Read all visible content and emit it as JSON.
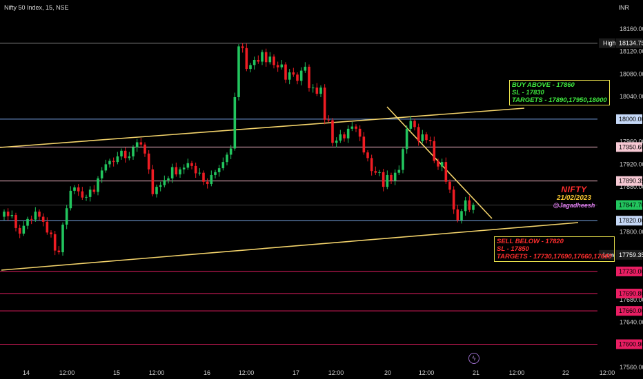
{
  "header": {
    "title": "Nifty 50 Index, 15, NSE",
    "currency": "INR"
  },
  "chart_data": {
    "type": "candlestick",
    "price_ylim": [
      17560,
      18175
    ],
    "x_tick_labels": [
      "14",
      "12:00",
      "15",
      "12:00",
      "16",
      "12:00",
      "17",
      "12:00",
      "20",
      "12:00",
      "21",
      "12:00",
      "22",
      "12:00"
    ],
    "y_tick_labels": [
      "18160.00",
      "18120.00",
      "18080.00",
      "18040.00",
      "17960.00",
      "17920.00",
      "17880.00",
      "17800.00",
      "17680.00",
      "17640.00",
      "17560.00"
    ],
    "horizontal_levels": [
      {
        "label": "High",
        "value": "18134.75",
        "price": 18134.75,
        "color": "#888888",
        "tag_bg": "#1b1b1b",
        "tag_fg": "#ffffff"
      },
      {
        "label": "",
        "value": "18000.00",
        "price": 18000.0,
        "color": "#7aa7e8",
        "tag_bg": "#c5d8f7",
        "tag_fg": "#000000"
      },
      {
        "label": "",
        "value": "17950.60",
        "price": 17950.6,
        "color": "#f4b6c6",
        "tag_bg": "#f7c9d4",
        "tag_fg": "#000000"
      },
      {
        "label": "",
        "value": "17890.35",
        "price": 17890.35,
        "color": "#f4b6c6",
        "tag_bg": "#f7c9d4",
        "tag_fg": "#000000"
      },
      {
        "label": "",
        "value": "17847.70",
        "price": 17847.7,
        "color": "#3d3d3d",
        "tag_bg": "#22c55e",
        "tag_fg": "#000000"
      },
      {
        "label": "",
        "value": "17820.00",
        "price": 17820.0,
        "color": "#7aa7e8",
        "tag_bg": "#c5d8f7",
        "tag_fg": "#000000"
      },
      {
        "label": "Low",
        "value": "17759.35",
        "price": 17759.35,
        "color": "#000000",
        "tag_bg": "#1b1b1b",
        "tag_fg": "#ffffff"
      },
      {
        "label": "",
        "value": "17730.00",
        "price": 17730.0,
        "color": "#e91e63",
        "tag_bg": "#e91e63",
        "tag_fg": "#000000"
      },
      {
        "label": "",
        "value": "17690.80",
        "price": 17690.8,
        "color": "#e91e63",
        "tag_bg": "#e91e63",
        "tag_fg": "#000000"
      },
      {
        "label": "",
        "value": "17660.00",
        "price": 17660.0,
        "color": "#e91e63",
        "tag_bg": "#e91e63",
        "tag_fg": "#000000"
      },
      {
        "label": "",
        "value": "17600.90",
        "price": 17600.9,
        "color": "#e91e63",
        "tag_bg": "#e91e63",
        "tag_fg": "#000000"
      }
    ],
    "trendlines": [
      {
        "color": "#f3d36b",
        "points": [
          [
            "14 09:15",
            17955
          ],
          [
            "21 12:00",
            18015
          ]
        ]
      },
      {
        "color": "#f3d36b",
        "points": [
          [
            "14 09:15",
            17755
          ],
          [
            "22 09:15",
            17818
          ]
        ]
      },
      {
        "color": "#f3d36b",
        "points": [
          [
            "20 10:30",
            18030
          ],
          [
            "21 11:30",
            17822
          ]
        ]
      }
    ],
    "candles": [
      [
        17827,
        17836
      ],
      [
        17836,
        17828
      ],
      [
        17828,
        17830
      ],
      [
        17830,
        17807
      ],
      [
        17807,
        17797
      ],
      [
        17797,
        17811
      ],
      [
        17811,
        17823
      ],
      [
        17823,
        17822
      ],
      [
        17822,
        17836
      ],
      [
        17836,
        17827
      ],
      [
        17827,
        17818
      ],
      [
        17818,
        17799
      ],
      [
        17799,
        17796
      ],
      [
        17796,
        17767
      ],
      [
        17767,
        17764
      ],
      [
        17764,
        17813
      ],
      [
        17813,
        17842
      ],
      [
        17842,
        17873
      ],
      [
        17873,
        17879
      ],
      [
        17879,
        17872
      ],
      [
        17872,
        17861
      ],
      [
        17861,
        17862
      ],
      [
        17862,
        17875
      ],
      [
        17875,
        17871
      ],
      [
        17871,
        17895
      ],
      [
        17895,
        17909
      ],
      [
        17909,
        17920
      ],
      [
        17920,
        17926
      ],
      [
        17926,
        17924
      ],
      [
        17924,
        17934
      ],
      [
        17934,
        17944
      ],
      [
        17944,
        17931
      ],
      [
        17931,
        17934
      ],
      [
        17934,
        17950
      ],
      [
        17950,
        17959
      ],
      [
        17959,
        17955
      ],
      [
        17955,
        17939
      ],
      [
        17939,
        17911
      ],
      [
        17911,
        17867
      ],
      [
        17867,
        17880
      ],
      [
        17880,
        17883
      ],
      [
        17883,
        17892
      ],
      [
        17892,
        17895
      ],
      [
        17895,
        17915
      ],
      [
        17915,
        17902
      ],
      [
        17902,
        17911
      ],
      [
        17911,
        17914
      ],
      [
        17914,
        17922
      ],
      [
        17922,
        17917
      ],
      [
        17917,
        17904
      ],
      [
        17904,
        17905
      ],
      [
        17905,
        17889
      ],
      [
        17889,
        17885
      ],
      [
        17885,
        17901
      ],
      [
        17901,
        17906
      ],
      [
        17906,
        17913
      ],
      [
        17913,
        17924
      ],
      [
        17924,
        17937
      ],
      [
        17937,
        17948
      ],
      [
        17948,
        18039
      ],
      [
        18039,
        18129
      ],
      [
        18129,
        18126
      ],
      [
        18126,
        18089
      ],
      [
        18089,
        18096
      ],
      [
        18096,
        18105
      ],
      [
        18105,
        18102
      ],
      [
        18102,
        18119
      ],
      [
        18119,
        18101
      ],
      [
        18101,
        18111
      ],
      [
        18111,
        18096
      ],
      [
        18096,
        18092
      ],
      [
        18092,
        18097
      ],
      [
        18097,
        18070
      ],
      [
        18070,
        18083
      ],
      [
        18083,
        18079
      ],
      [
        18079,
        18068
      ],
      [
        18068,
        18086
      ],
      [
        18086,
        18093
      ],
      [
        18093,
        18055
      ],
      [
        18055,
        18056
      ],
      [
        18056,
        18045
      ],
      [
        18045,
        18056
      ],
      [
        18056,
        17999
      ],
      [
        17999,
        17998
      ],
      [
        17998,
        17958
      ],
      [
        17958,
        17962
      ],
      [
        17962,
        17973
      ],
      [
        17973,
        17966
      ],
      [
        17966,
        17983
      ],
      [
        17983,
        17987
      ],
      [
        17987,
        17983
      ],
      [
        17983,
        17969
      ],
      [
        17969,
        17941
      ],
      [
        17941,
        17931
      ],
      [
        17931,
        17908
      ],
      [
        17908,
        17905
      ],
      [
        17905,
        17906
      ],
      [
        17906,
        17880
      ],
      [
        17880,
        17901
      ],
      [
        17901,
        17891
      ],
      [
        17891,
        17905
      ],
      [
        17905,
        17910
      ],
      [
        17910,
        17947
      ],
      [
        17947,
        17983
      ],
      [
        17983,
        17997
      ],
      [
        17997,
        17986
      ],
      [
        17986,
        17961
      ],
      [
        17961,
        17973
      ],
      [
        17973,
        17963
      ],
      [
        17963,
        17961
      ],
      [
        17961,
        17926
      ],
      [
        17926,
        17916
      ],
      [
        17916,
        17924
      ],
      [
        17924,
        17889
      ],
      [
        17889,
        17875
      ],
      [
        17875,
        17840
      ],
      [
        17840,
        17821
      ],
      [
        17821,
        17837
      ],
      [
        17837,
        17856
      ],
      [
        17856,
        17839
      ],
      [
        17839,
        17848
      ]
    ]
  }
}
